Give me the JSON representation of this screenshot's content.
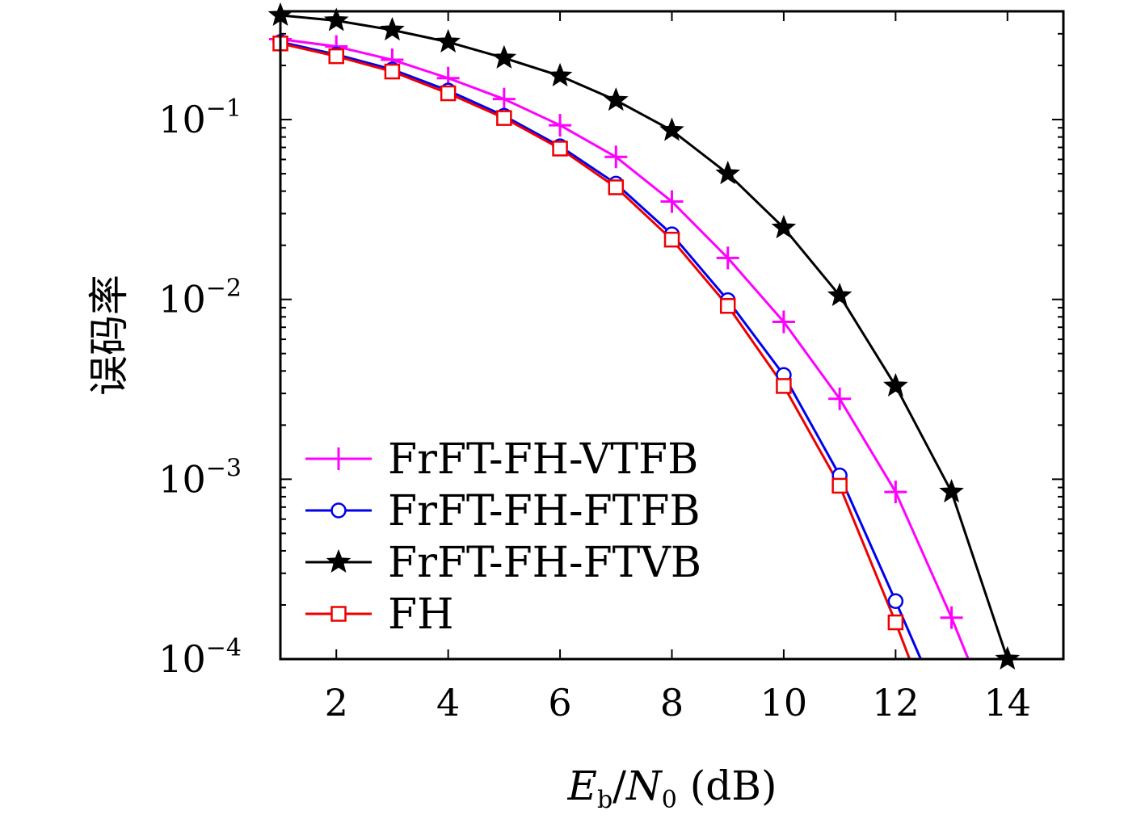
{
  "chart_data": {
    "type": "line",
    "xlabel": {
      "italic_main": "E",
      "main_sub": "b",
      "sep": "/",
      "italic_main2": "N",
      "main2_sub": "0",
      "unit": " (dB)"
    },
    "ylabel": "误码率",
    "xlim": [
      1,
      15
    ],
    "ylim": [
      0.0001,
      0.4
    ],
    "yscale": "log",
    "x_ticks": [
      2,
      4,
      6,
      8,
      10,
      12,
      14
    ],
    "y_ticks": [
      {
        "value": 0.1,
        "base": "10",
        "exp": "−1"
      },
      {
        "value": 0.01,
        "base": "10",
        "exp": "−2"
      },
      {
        "value": 0.001,
        "base": "10",
        "exp": "−3"
      },
      {
        "value": 0.0001,
        "base": "10",
        "exp": "−4"
      }
    ],
    "legend_position": "bottom-left",
    "series": [
      {
        "name": "FrFT-FH-VTFB",
        "color": "#ff00ff",
        "marker": "plus",
        "x": [
          1,
          2,
          3,
          4,
          5,
          6,
          7,
          8,
          9,
          10,
          11,
          12,
          13,
          13.3
        ],
        "y": [
          0.28,
          0.255,
          0.215,
          0.17,
          0.13,
          0.093,
          0.062,
          0.035,
          0.017,
          0.0075,
          0.0028,
          0.00085,
          0.00017,
          0.0001
        ],
        "marker_count": 13
      },
      {
        "name": "FrFT-FH-FTFB",
        "color": "#0000ee",
        "marker": "circle",
        "x": [
          1,
          2,
          3,
          4,
          5,
          6,
          7,
          8,
          9,
          10,
          11,
          12,
          12.45
        ],
        "y": [
          0.27,
          0.23,
          0.19,
          0.145,
          0.105,
          0.071,
          0.044,
          0.023,
          0.0099,
          0.0038,
          0.00105,
          0.00021,
          0.0001
        ],
        "marker_count": 12
      },
      {
        "name": "FrFT-FH-FTVB",
        "color": "#000000",
        "marker": "star",
        "x": [
          1,
          2,
          3,
          4,
          5,
          6,
          7,
          8,
          9,
          10,
          11,
          12,
          13,
          14
        ],
        "y": [
          0.38,
          0.355,
          0.315,
          0.27,
          0.22,
          0.175,
          0.128,
          0.087,
          0.05,
          0.025,
          0.0105,
          0.0033,
          0.00085,
          0.0001
        ],
        "marker_count": 14
      },
      {
        "name": "FH",
        "color": "#ee0000",
        "marker": "square",
        "x": [
          1,
          2,
          3,
          4,
          5,
          6,
          7,
          8,
          9,
          10,
          11,
          12,
          12.25
        ],
        "y": [
          0.265,
          0.225,
          0.185,
          0.14,
          0.102,
          0.069,
          0.042,
          0.0215,
          0.0092,
          0.0033,
          0.00092,
          0.00016,
          0.0001
        ],
        "marker_count": 12
      }
    ]
  }
}
